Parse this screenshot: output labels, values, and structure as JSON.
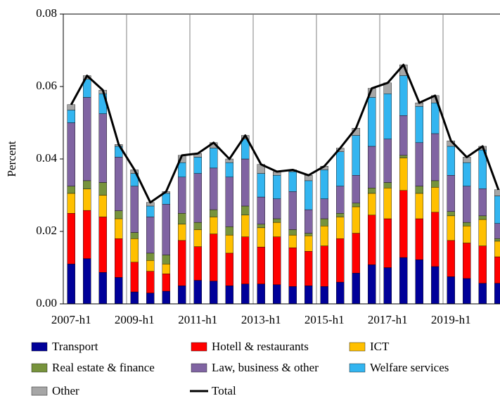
{
  "chart_data": {
    "type": "bar",
    "stacked": true,
    "y_label": "Percent",
    "categories": [
      "2007-h1",
      null,
      null,
      null,
      "2009-h1",
      null,
      null,
      null,
      "2011-h1",
      null,
      null,
      null,
      "2013-h1",
      null,
      null,
      null,
      "2015-h1",
      null,
      null,
      null,
      "2017-h1",
      null,
      null,
      null,
      "2019-h1",
      null,
      null,
      null
    ],
    "ylim": [
      0,
      0.08
    ],
    "yticks": [
      {
        "value": 0,
        "label": "0.00"
      },
      {
        "value": 0.02,
        "label": "0.02"
      },
      {
        "value": 0.04,
        "label": "0.04"
      },
      {
        "value": 0.06,
        "label": "0.06"
      },
      {
        "value": 0.08,
        "label": "0.08"
      }
    ],
    "series": [
      {
        "name": "Transport",
        "color": "#000099",
        "values": [
          0.011,
          0.0125,
          0.0087,
          0.0073,
          0.0033,
          0.003,
          0.0035,
          0.005,
          0.0065,
          0.0063,
          0.005,
          0.0055,
          0.0055,
          0.0053,
          0.0048,
          0.005,
          0.0048,
          0.006,
          0.0085,
          0.0108,
          0.01,
          0.0128,
          0.0122,
          0.0103,
          0.0075,
          0.007,
          0.0057,
          0.0057
        ]
      },
      {
        "name": "Hotell & restaurants",
        "color": "#ff0000",
        "values": [
          0.014,
          0.0133,
          0.0153,
          0.0107,
          0.0082,
          0.006,
          0.0048,
          0.0125,
          0.0093,
          0.013,
          0.009,
          0.013,
          0.0102,
          0.0132,
          0.0107,
          0.0095,
          0.0112,
          0.012,
          0.011,
          0.0137,
          0.0135,
          0.0185,
          0.0113,
          0.015,
          0.01,
          0.0098,
          0.0103,
          0.0073
        ]
      },
      {
        "name": "ICT",
        "color": "#ffc000",
        "values": [
          0.0055,
          0.0059,
          0.006,
          0.0055,
          0.0065,
          0.003,
          0.0027,
          0.0045,
          0.0047,
          0.0047,
          0.005,
          0.006,
          0.0053,
          0.004,
          0.0035,
          0.0043,
          0.0055,
          0.006,
          0.0073,
          0.006,
          0.0085,
          0.009,
          0.007,
          0.0069,
          0.0068,
          0.0047,
          0.0073,
          0.0043
        ]
      },
      {
        "name": "Real estate & finance",
        "color": "#77933c",
        "values": [
          0.002,
          0.0023,
          0.0035,
          0.0022,
          0.0017,
          0.002,
          0.0025,
          0.003,
          0.002,
          0.002,
          0.0023,
          0.0025,
          0.001,
          0.001,
          0.0015,
          0.0007,
          0.002,
          0.001,
          0.001,
          0.0015,
          0.0015,
          0.0007,
          0.002,
          0.0018,
          0.0012,
          0.001,
          0.001,
          0.0007
        ]
      },
      {
        "name": "Law, business & other",
        "color": "#8064a2",
        "values": [
          0.0175,
          0.023,
          0.019,
          0.0148,
          0.0128,
          0.01,
          0.014,
          0.01,
          0.0135,
          0.0115,
          0.0137,
          0.013,
          0.0075,
          0.0055,
          0.0105,
          0.0065,
          0.0055,
          0.0075,
          0.0077,
          0.0115,
          0.012,
          0.011,
          0.012,
          0.013,
          0.01,
          0.01,
          0.0075,
          0.0042
        ]
      },
      {
        "name": "Welfare services",
        "color": "#33b5f0",
        "values": [
          0.0035,
          0.005,
          0.0055,
          0.003,
          0.0035,
          0.003,
          0.003,
          0.004,
          0.0045,
          0.0055,
          0.004,
          0.0055,
          0.0065,
          0.0065,
          0.0055,
          0.008,
          0.008,
          0.0095,
          0.011,
          0.0135,
          0.0125,
          0.011,
          0.01,
          0.0085,
          0.008,
          0.0065,
          0.0107,
          0.0076
        ]
      },
      {
        "name": "Other",
        "color": "#a6a6a6",
        "values": [
          0.0015,
          0.001,
          0.001,
          0.0005,
          0.001,
          0.001,
          0.0005,
          0.002,
          0.001,
          0.0015,
          0.001,
          0.001,
          0.0025,
          0.001,
          0.0005,
          0.0015,
          0.001,
          0.001,
          0.002,
          0.0025,
          0.003,
          0.003,
          0.001,
          0.002,
          0.0015,
          0.0015,
          0.001,
          0.0017
        ]
      },
      {
        "name": "Total",
        "color": "#000000",
        "type": "line",
        "values": [
          0.055,
          0.063,
          0.059,
          0.044,
          0.037,
          0.028,
          0.031,
          0.041,
          0.0415,
          0.0445,
          0.04,
          0.0465,
          0.0385,
          0.0365,
          0.037,
          0.0355,
          0.038,
          0.043,
          0.0485,
          0.0595,
          0.061,
          0.066,
          0.0555,
          0.0575,
          0.045,
          0.0405,
          0.0435,
          0.0315
        ]
      }
    ]
  }
}
